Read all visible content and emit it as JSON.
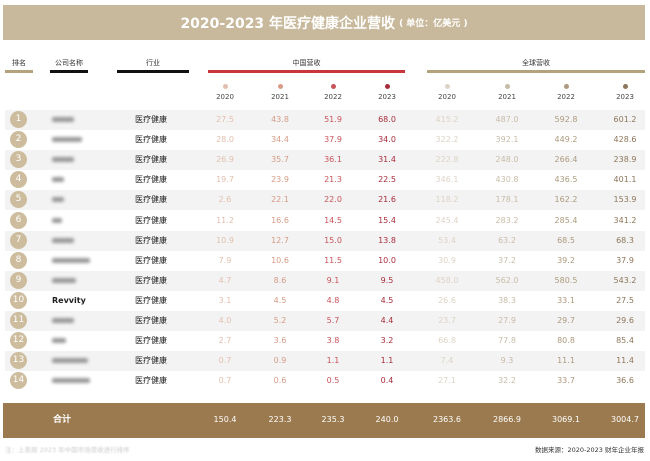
{
  "title": "2020-2023 年医疗健康企业营收",
  "unit": "( 单位：亿美元 )",
  "headers": {
    "rank": "排名",
    "company": "公司名称",
    "industry": "行业",
    "china": "中国营收",
    "global": "全球营收"
  },
  "years": [
    "2020",
    "2021",
    "2022",
    "2023"
  ],
  "colors": {
    "title_bar": "#c9b99c",
    "total_bar": "#9a7a4e",
    "china_line": "#c8353c",
    "global_line": "#b4a27f",
    "china_years": [
      "#e2bfae",
      "#d69c86",
      "#c9545a",
      "#a82d3a"
    ],
    "global_years": [
      "#ddd3c6",
      "#c8bca8",
      "#ad9a7e",
      "#8d765a"
    ]
  },
  "rows": [
    {
      "rank": "1",
      "name": "",
      "industry": "医疗健康",
      "china": [
        "27.5",
        "43.8",
        "51.9",
        "68.0"
      ],
      "global": [
        "415.2",
        "487.0",
        "592.8",
        "601.2"
      ]
    },
    {
      "rank": "2",
      "name": "",
      "industry": "医疗健康",
      "china": [
        "28.0",
        "34.4",
        "37.9",
        "34.0"
      ],
      "global": [
        "322.2",
        "392.1",
        "449.2",
        "428.6"
      ]
    },
    {
      "rank": "3",
      "name": "",
      "industry": "医疗健康",
      "china": [
        "26.9",
        "35.7",
        "36.1",
        "31.4"
      ],
      "global": [
        "222.8",
        "248.0",
        "266.4",
        "238.9"
      ]
    },
    {
      "rank": "4",
      "name": "",
      "industry": "医疗健康",
      "china": [
        "19.7",
        "23.9",
        "21.3",
        "22.5"
      ],
      "global": [
        "346.1",
        "430.8",
        "436.5",
        "401.1"
      ]
    },
    {
      "rank": "5",
      "name": "",
      "industry": "医疗健康",
      "china": [
        "2.6",
        "22.1",
        "22.0",
        "21.6"
      ],
      "global": [
        "118.2",
        "178.1",
        "162.2",
        "153.9"
      ]
    },
    {
      "rank": "6",
      "name": "",
      "industry": "医疗健康",
      "china": [
        "11.2",
        "16.6",
        "14.5",
        "15.4"
      ],
      "global": [
        "245.4",
        "283.2",
        "285.4",
        "341.2"
      ]
    },
    {
      "rank": "7",
      "name": "",
      "industry": "医疗健康",
      "china": [
        "10.9",
        "12.7",
        "15.0",
        "13.8"
      ],
      "global": [
        "53.4",
        "63.2",
        "68.5",
        "68.3"
      ]
    },
    {
      "rank": "8",
      "name": "",
      "industry": "医疗健康",
      "china": [
        "7.9",
        "10.6",
        "11.5",
        "10.0"
      ],
      "global": [
        "30.9",
        "37.2",
        "39.2",
        "37.9"
      ]
    },
    {
      "rank": "9",
      "name": "",
      "industry": "医疗健康",
      "china": [
        "4.7",
        "8.6",
        "9.1",
        "9.5"
      ],
      "global": [
        "458.0",
        "562.0",
        "580.5",
        "543.2"
      ]
    },
    {
      "rank": "10",
      "name": "Revvity",
      "industry": "医疗健康",
      "china": [
        "3.1",
        "4.5",
        "4.8",
        "4.5"
      ],
      "global": [
        "26.6",
        "38.3",
        "33.1",
        "27.5"
      ]
    },
    {
      "rank": "11",
      "name": "",
      "industry": "医疗健康",
      "china": [
        "4.0",
        "5.2",
        "5.7",
        "4.4"
      ],
      "global": [
        "23.7",
        "27.9",
        "29.7",
        "29.6"
      ]
    },
    {
      "rank": "12",
      "name": "",
      "industry": "医疗健康",
      "china": [
        "2.7",
        "3.6",
        "3.8",
        "3.2"
      ],
      "global": [
        "66.8",
        "77.8",
        "80.8",
        "85.4"
      ]
    },
    {
      "rank": "13",
      "name": "",
      "industry": "医疗健康",
      "china": [
        "0.7",
        "0.9",
        "1.1",
        "1.1"
      ],
      "global": [
        "7.4",
        "9.3",
        "11.1",
        "11.4"
      ]
    },
    {
      "rank": "14",
      "name": "",
      "industry": "医疗健康",
      "china": [
        "0.7",
        "0.6",
        "0.5",
        "0.4"
      ],
      "global": [
        "27.1",
        "32.2",
        "33.7",
        "36.6"
      ]
    }
  ],
  "total": {
    "label": "合计",
    "china": [
      "150.4",
      "223.3",
      "235.3",
      "240.0"
    ],
    "global": [
      "2363.6",
      "2866.9",
      "3069.1",
      "3004.7"
    ]
  },
  "footnote": "注：上表按 2023 年中国市场营收进行排序",
  "source": "数据来源：2020-2023 财年企业年报"
}
